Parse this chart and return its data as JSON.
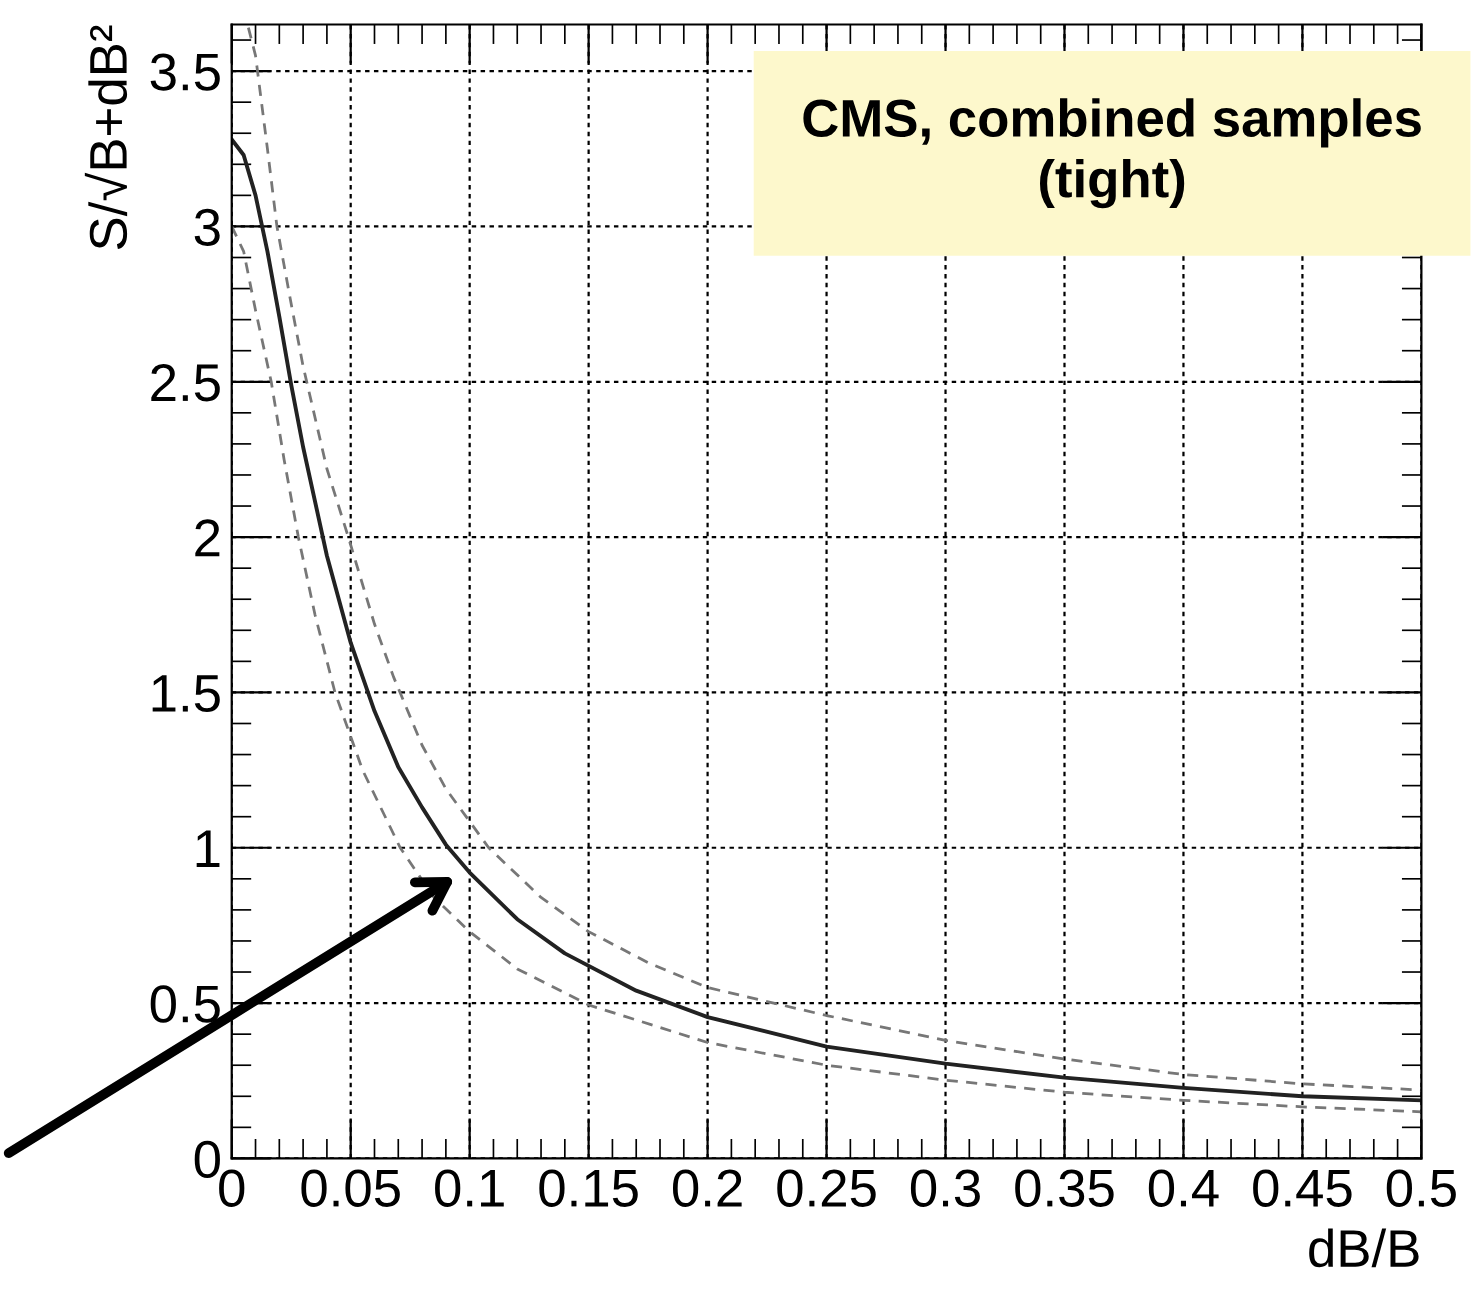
{
  "chart_data": {
    "type": "line",
    "title": "CMS, combined samples\n(tight)",
    "xlabel": "dB/B",
    "ylabel": "S/√B+dB²",
    "xlim": [
      0,
      0.5
    ],
    "ylim": [
      0,
      3.65
    ],
    "xticks": [
      0,
      0.05,
      0.1,
      0.15,
      0.2,
      0.25,
      0.3,
      0.35,
      0.4,
      0.45,
      0.5
    ],
    "yticks": [
      0,
      0.5,
      1,
      1.5,
      2,
      2.5,
      3,
      3.5
    ],
    "grid": true,
    "marker": "none",
    "series": [
      {
        "color": "#222222",
        "line_style": "solid",
        "x": [
          0,
          0.005,
          0.01,
          0.015,
          0.02,
          0.025,
          0.03,
          0.04,
          0.05,
          0.06,
          0.07,
          0.08,
          0.09,
          0.1,
          0.12,
          0.14,
          0.17,
          0.2,
          0.25,
          0.3,
          0.35,
          0.4,
          0.45,
          0.5
        ],
        "values": [
          3.28,
          3.23,
          3.1,
          2.92,
          2.71,
          2.49,
          2.29,
          1.94,
          1.66,
          1.44,
          1.26,
          1.13,
          1.01,
          0.92,
          0.77,
          0.66,
          0.54,
          0.455,
          0.36,
          0.305,
          0.26,
          0.227,
          0.2,
          0.187
        ]
      },
      {
        "color": "#777777",
        "line_style": "dashed",
        "x": [
          0.007,
          0.01,
          0.015,
          0.019,
          0.025,
          0.03,
          0.04,
          0.049,
          0.06,
          0.068,
          0.08,
          0.09,
          0.108,
          0.13,
          0.15,
          0.175,
          0.2,
          0.25,
          0.3,
          0.35,
          0.4,
          0.45,
          0.5
        ],
        "values": [
          3.64,
          3.55,
          3.25,
          3.0,
          2.75,
          2.55,
          2.22,
          2.0,
          1.72,
          1.55,
          1.33,
          1.19,
          1.0,
          0.84,
          0.73,
          0.63,
          0.55,
          0.46,
          0.38,
          0.32,
          0.27,
          0.24,
          0.22
        ]
      },
      {
        "color": "#777777",
        "line_style": "dashed",
        "x": [
          0,
          0.005,
          0.01,
          0.0166,
          0.022,
          0.028,
          0.035,
          0.0434,
          0.055,
          0.0708,
          0.085,
          0.1,
          0.12,
          0.15,
          0.2,
          0.25,
          0.3,
          0.35,
          0.4,
          0.45,
          0.5
        ],
        "values": [
          3.0,
          2.92,
          2.73,
          2.5,
          2.25,
          2.0,
          1.75,
          1.5,
          1.25,
          1.0,
          0.84,
          0.73,
          0.61,
          0.494,
          0.373,
          0.3,
          0.252,
          0.213,
          0.187,
          0.166,
          0.15
        ]
      }
    ]
  }
}
